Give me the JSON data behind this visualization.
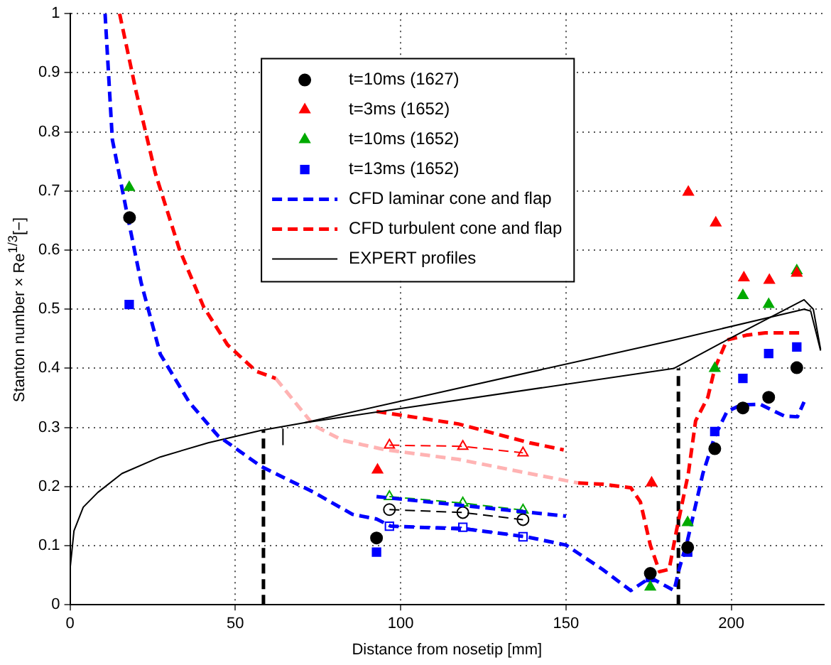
{
  "chart_data": {
    "type": "line",
    "xlabel": "Distance from nosetip [mm]",
    "ylabel": "Stanton number × Re$^{1/3}$[−]",
    "xlim": [
      0,
      228
    ],
    "xticks": [
      0,
      50,
      100,
      150,
      200
    ],
    "ylim": [
      0,
      1
    ],
    "yticks": [
      0,
      0.1,
      0.2,
      0.3,
      0.4,
      0.5,
      0.6,
      0.7,
      0.8,
      0.9,
      1
    ],
    "grid": true,
    "legend": "top",
    "series": [
      {
        "name": "t=10ms (1627)",
        "type": "scatter",
        "marker": "circle",
        "color": "#000000",
        "x": [
          18,
          92.7,
          175.5,
          186.8,
          195,
          203.5,
          211.3,
          219.8
        ],
        "values": [
          0.655,
          0.113,
          0.053,
          0.097,
          0.264,
          0.333,
          0.351,
          0.401
        ]
      },
      {
        "name": "t=3ms (1652)",
        "type": "scatter",
        "marker": "triangle",
        "color": "#ff0000",
        "x": [
          93,
          175.9,
          187,
          195.3,
          203.8,
          211.5,
          219.8
        ],
        "values": [
          0.228,
          0.206,
          0.698,
          0.646,
          0.553,
          0.549,
          0.561
        ]
      },
      {
        "name": "t=10ms (1652)",
        "type": "scatter",
        "marker": "triangle",
        "color": "#00aa00",
        "x": [
          17.9,
          175.5,
          186.8,
          195,
          203.5,
          211.3,
          219.8
        ],
        "values": [
          0.706,
          0.03,
          0.139,
          0.4,
          0.523,
          0.508,
          0.565
        ]
      },
      {
        "name": "t=13ms (1652)",
        "type": "scatter",
        "marker": "square",
        "color": "#0000ff",
        "x": [
          17.9,
          92.7,
          175.5,
          186.8,
          195,
          203.5,
          211.3,
          219.8
        ],
        "values": [
          0.508,
          0.089,
          0.046,
          0.089,
          0.293,
          0.383,
          0.425,
          0.436
        ]
      },
      {
        "name": "CFD laminar cone and flap",
        "type": "line",
        "marker": "none",
        "line_style": "dashed",
        "color": "#0000ff",
        "x": [
          10.6,
          12.8,
          17.1,
          21.5,
          27.3,
          36,
          44.7,
          57.8,
          73.8,
          85.4,
          92.7,
          97,
          120,
          138,
          150,
          161,
          169.6,
          175.5,
          182.7,
          184.2,
          186.8,
          191.4,
          195,
          198.7,
          203,
          208.8,
          216.1,
          220,
          222
        ],
        "values": [
          1,
          0.787,
          0.666,
          0.545,
          0.424,
          0.343,
          0.286,
          0.234,
          0.19,
          0.153,
          0.145,
          0.133,
          0.128,
          0.115,
          0.101,
          0.06,
          0.024,
          0.046,
          0.024,
          0.06,
          0.11,
          0.222,
          0.285,
          0.327,
          0.338,
          0.339,
          0.319,
          0.318,
          0.343
        ]
      },
      {
        "name": "CFD turbulent cone and flap",
        "type": "line",
        "marker": "none",
        "line_style": "dashed",
        "color": "#ff0000",
        "x": [
          15,
          20,
          25.8,
          33.1,
          40.4,
          47.6,
          56.3,
          62.2
        ],
        "values": [
          1,
          0.868,
          0.73,
          0.601,
          0.504,
          0.44,
          0.395,
          0.383
        ]
      },
      {
        "name": "EXPERT profiles",
        "type": "line",
        "marker": "none",
        "line_style": "solid",
        "color": "#000000",
        "x": [
          0,
          1.2,
          4,
          8.4,
          15.7,
          27.3,
          41.8,
          57.8,
          70.9,
          182.7,
          198.7,
          222,
          224.8,
          227
        ],
        "values": [
          0.06,
          0.125,
          0.165,
          0.19,
          0.222,
          0.25,
          0.274,
          0.295,
          0.308,
          0.4,
          0.448,
          0.516,
          0.5,
          0.432
        ]
      },
      {
        "type": "line",
        "marker": "none",
        "line_style": "solid",
        "color": "#000000",
        "x": [
          70.9,
          182.7,
          222,
          224,
          227
        ],
        "values": [
          0.308,
          0.448,
          0.5,
          0.497,
          0.43
        ]
      },
      {
        "type": "line",
        "marker": "none",
        "line_style": "dashed",
        "color": "#0000ff",
        "x": [
          92.7,
          150
        ],
        "values": [
          0.183,
          0.15
        ]
      },
      {
        "type": "line",
        "marker": "none",
        "line_style": "dashed",
        "color": "#ff0000",
        "x": [
          92.7,
          117.4,
          139,
          149.3
        ],
        "values": [
          0.327,
          0.306,
          0.274,
          0.262
        ]
      },
      {
        "type": "line",
        "marker": "none",
        "line_style": "dashed",
        "color": "#ff0000",
        "x": [
          153.7,
          161,
          169.6,
          172.5,
          175.5,
          178.3,
          181.2,
          183.4,
          187,
          189.2,
          192.9,
          195,
          198.7,
          204.5,
          210.3,
          216.1,
          221.9
        ],
        "values": [
          0.206,
          0.204,
          0.198,
          0.174,
          0.101,
          0.056,
          0.06,
          0.125,
          0.222,
          0.311,
          0.351,
          0.4,
          0.448,
          0.456,
          0.46,
          0.46,
          0.46
        ]
      },
      {
        "type": "line",
        "marker": "none",
        "line_style": "dashed",
        "color": "#ffb3b3",
        "x": [
          62.2,
          68,
          73.8,
          82.5,
          95.6,
          117.4,
          139,
          153.7
        ],
        "values": [
          0.383,
          0.343,
          0.303,
          0.278,
          0.262,
          0.246,
          0.222,
          0.206
        ]
      },
      {
        "type": "line",
        "marker": "circle",
        "line_style": "dashed",
        "color": "#000000",
        "x": [
          96.6,
          118.8,
          137
        ],
        "values": [
          0.161,
          0.156,
          0.144
        ]
      },
      {
        "type": "line",
        "marker": "triangle",
        "line_style": "dashed",
        "color": "#00aa00",
        "x": [
          96.6,
          118.8,
          137
        ],
        "values": [
          0.183,
          0.172,
          0.16
        ]
      },
      {
        "type": "line",
        "marker": "square",
        "line_style": "dashed",
        "color": "#0000ff",
        "x": [
          96.6,
          118.8,
          137
        ],
        "values": [
          0.133,
          0.131,
          0.115
        ]
      },
      {
        "type": "line",
        "marker": "triangle",
        "line_style": "dashed",
        "color": "#ff0000",
        "x": [
          96.6,
          118.8,
          137
        ],
        "values": [
          0.27,
          0.268,
          0.257
        ]
      },
      {
        "type": "line",
        "marker": "none",
        "line_style": "dashed",
        "color": "#000000",
        "x": [
          58.5,
          58.5
        ],
        "values": [
          0,
          0.295
        ]
      },
      {
        "type": "line",
        "marker": "none",
        "line_style": "dashed",
        "color": "#000000",
        "x": [
          184,
          184
        ],
        "values": [
          0,
          0.4
        ]
      },
      {
        "type": "line",
        "marker": "none",
        "line_style": "solid",
        "color": "#000000",
        "x": [
          64.4,
          64.4
        ],
        "values": [
          0.27,
          0.298
        ]
      }
    ]
  }
}
